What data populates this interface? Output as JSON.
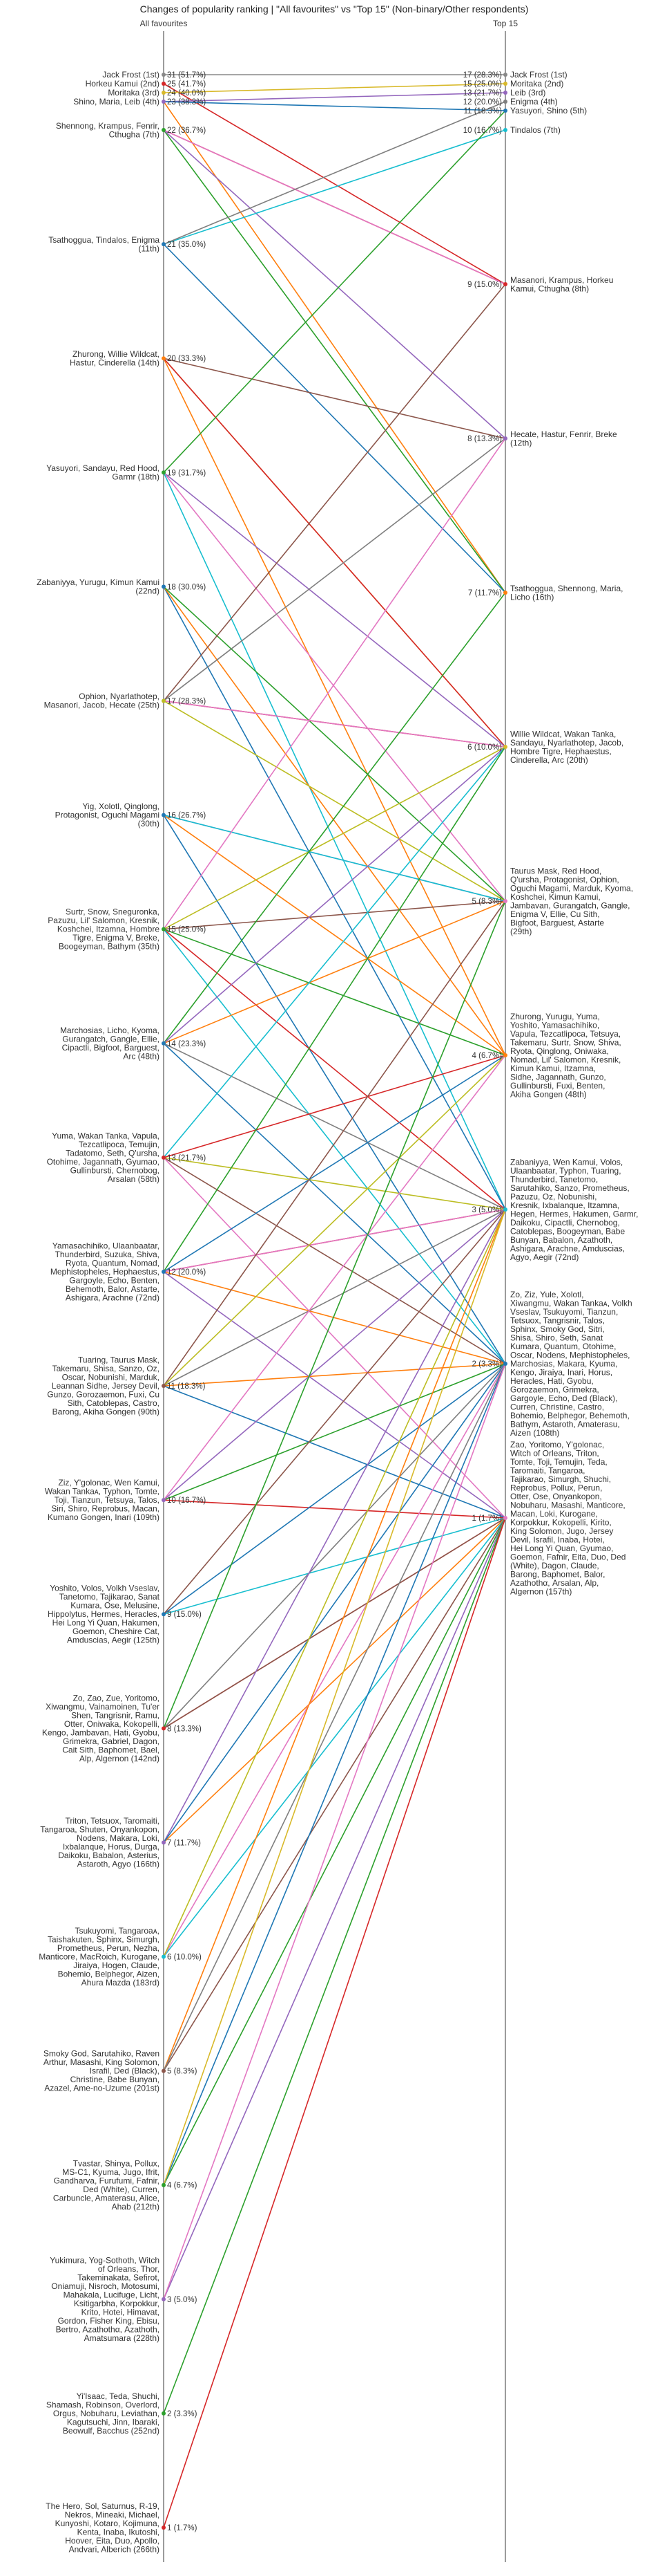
{
  "chart_data": {
    "type": "slope",
    "title": "Changes of popularity ranking | \"All favourites\" vs \"Top 15\" (Non-binary/Other respondents)",
    "left_header": "All favourites",
    "right_header": "Top 15",
    "left_max": 31,
    "right_max": 17,
    "left_groups": [
      {
        "count": 31,
        "pct": "51.7%",
        "names": [
          "Jack Frost (1st)"
        ]
      },
      {
        "count": 25,
        "pct": "41.7%",
        "names": [
          "Horkeu Kamui (2nd)"
        ]
      },
      {
        "count": 24,
        "pct": "40.0%",
        "names": [
          "Moritaka (3rd)"
        ]
      },
      {
        "count": 23,
        "pct": "38.3%",
        "names": [
          "Shino, Maria, Leib (4th)"
        ]
      },
      {
        "count": 22,
        "pct": "36.7%",
        "names": [
          "Shennong, Krampus, Fenrir,",
          "Cthugha (7th)"
        ]
      },
      {
        "count": 21,
        "pct": "35.0%",
        "names": [
          "Tsathoggua, Tindalos, Enigma",
          "(11th)"
        ]
      },
      {
        "count": 20,
        "pct": "33.3%",
        "names": [
          "Zhurong, Willie Wildcat,",
          "Hastur, Cinderella (14th)"
        ]
      },
      {
        "count": 19,
        "pct": "31.7%",
        "names": [
          "Yasuyori, Sandayu, Red Hood,",
          "Garmr (18th)"
        ]
      },
      {
        "count": 18,
        "pct": "30.0%",
        "names": [
          "Zabaniyya, Yurugu, Kimun Kamui",
          "(22nd)"
        ]
      },
      {
        "count": 17,
        "pct": "28.3%",
        "names": [
          "Ophion, Nyarlathotep,",
          "Masanori, Jacob, Hecate (25th)"
        ]
      },
      {
        "count": 16,
        "pct": "26.7%",
        "names": [
          "Yig, Xolotl, Qinglong,",
          "Protagonist, Oguchi Magami",
          "(30th)"
        ]
      },
      {
        "count": 15,
        "pct": "25.0%",
        "names": [
          "Surtr, Snow, Sneguronka,",
          "Pazuzu, Lil' Salomon, Kresnik,",
          "Koshchei, Itzamna, Hombre",
          "Tigre, Enigma V, Breke,",
          "Boogeyman, Bathym (35th)"
        ]
      },
      {
        "count": 14,
        "pct": "23.3%",
        "names": [
          "Marchosias, Licho, Kyoma,",
          "Gurangatch, Gangle, Ellie,",
          "Cipactli, Bigfoot, Barguest,",
          "Arc (48th)"
        ]
      },
      {
        "count": 13,
        "pct": "21.7%",
        "names": [
          "Yuma, Wakan Tanka, Vapula,",
          "Tezcatlipoca, Temujin,",
          "Tadatomo, Seth, Q'ursha,",
          "Otohime, Jagannath, Gyumao,",
          "Gullinbursti, Chernobog,",
          "Arsalan (58th)"
        ]
      },
      {
        "count": 12,
        "pct": "20.0%",
        "names": [
          "Yamasachihiko, Ulaanbaatar,",
          "Thunderbird, Suzuka, Shiva,",
          "Ryota, Quantum, Nomad,",
          "Mephistopheles, Hephaestus,",
          "Gargoyle, Echo, Benten,",
          "Behemoth, Balor, Astarte,",
          "Ashigara, Arachne (72nd)"
        ]
      },
      {
        "count": 11,
        "pct": "18.3%",
        "names": [
          "Tuaring, Taurus Mask,",
          "Takemaru, Shisa, Sanzo, Oz,",
          "Oscar, Nobunishi, Marduk,",
          "Leannan Sidhe, Jersey Devil,",
          "Gunzo, Gorozaemon, Fuxi, Cu",
          "Sith, Catoblepas, Castro,",
          "Barong, Akiha Gongen (90th)"
        ]
      },
      {
        "count": 10,
        "pct": "16.7%",
        "names": [
          "Ziz, Y'golonac, Wen Kamui,",
          "Wakan Tankaᴀ, Typhon, Tomte,",
          "Toji, Tianzun, Tetsuya, Talos,",
          "Siri, Shiro, Reprobus, Macan,",
          "Kumano Gongen, Inari (109th)"
        ]
      },
      {
        "count": 9,
        "pct": "15.0%",
        "names": [
          "Yoshito, Volos, Volkh Vseslav,",
          "Tanetomo, Tajikarao, Sanat",
          "Kumara, Ose, Melusine,",
          "Hippolytus, Hermes, Heracles,",
          "Hei Long Yi Quan, Hakumen,",
          "Goemon, Cheshire Cat,",
          "Amduscias, Aegir (125th)"
        ]
      },
      {
        "count": 8,
        "pct": "13.3%",
        "names": [
          "Zo, Zao, Zue, Yoritomo,",
          "Xiwangmu, Vainamoinen, Tu'er",
          "Shen, Tangrisnir, Ramu,",
          "Otter, Oniwaka, Kokopelli,",
          "Kengo, Jambavan, Hati, Gyobu,",
          "Grimekra, Gabriel, Dagon,",
          "Cait Sith, Baphomet, Bael,",
          "Alp, Algernon (142nd)"
        ]
      },
      {
        "count": 7,
        "pct": "11.7%",
        "names": [
          "Triton, Tetsuox, Taromaiti,",
          "Tangaroa, Shuten, Onyankopon,",
          "Nodens, Makara, Loki,",
          "Ixbalanque, Horus, Durga,",
          "Daikoku, Babalon, Asterius,",
          "Astaroth, Agyo (166th)"
        ]
      },
      {
        "count": 6,
        "pct": "10.0%",
        "names": [
          "Tsukuyomi, Tangaroaᴀ,",
          "Taishakuten, Sphinx, Simurgh,",
          "Prometheus, Perun, Nezha,",
          "Manticore, MacRoich, Kurogane,",
          "Jiraiya, Hogen, Claude,",
          "Bohemio, Belphegor, Aizen,",
          "Ahura Mazda (183rd)"
        ]
      },
      {
        "count": 5,
        "pct": "8.3%",
        "names": [
          "Smoky God, Sarutahiko, Raven",
          "Arthur, Masashi, King Solomon,",
          "Israfil, Ded (Black),",
          "Christine, Babe Bunyan,",
          "Azazel, Ame-no-Uzume (201st)"
        ]
      },
      {
        "count": 4,
        "pct": "6.7%",
        "names": [
          "Tvastar, Shinya, Pollux,",
          "MS-C1, Kyuma, Jugo, Ifrit,",
          "Gandharva, Furufumi, Fafnir,",
          "Ded (White), Curren,",
          "Carbuncle, Amaterasu, Alice,",
          "Ahab (212th)"
        ]
      },
      {
        "count": 3,
        "pct": "5.0%",
        "names": [
          "Yukimura, Yog-Sothoth, Witch",
          "of Orleans, Thor,",
          "Takeminakata, Sefirot,",
          "Oniamuji, Nisroch, Motosumi,",
          "Mahakala, Lucifuge, Licht,",
          "Ksitigarbha, Korpokkur,",
          "Krito, Hotei, Himavat,",
          "Gordon, Fisher King, Ebisu,",
          "Bertro, Azathothα, Azathoth,",
          "Amatsumara (228th)"
        ]
      },
      {
        "count": 2,
        "pct": "3.3%",
        "names": [
          "Yi'Isaac, Teda, Shuchi,",
          "Shamash, Robinson, Overlord,",
          "Orgus, Nobuharu, Leviathan,",
          "Kagutsuchi, Jinn, Ibaraki,",
          "Beowulf, Bacchus (252nd)"
        ]
      },
      {
        "count": 1,
        "pct": "1.7%",
        "names": [
          "The Hero, Sol, Saturnus, R-19,",
          "Nekros, Mineaki, Michael,",
          "Kunyoshi, Kotaro, Kojimuna,",
          "Kenta, Inaba, Ikutoshi,",
          "Hoover, Eita, Duo, Apollo,",
          "Andvari, Alberich (266th)"
        ]
      }
    ],
    "right_groups": [
      {
        "count": 17,
        "pct": "28.3%",
        "names": [
          "Jack Frost (1st)"
        ]
      },
      {
        "count": 15,
        "pct": "25.0%",
        "names": [
          "Moritaka (2nd)"
        ]
      },
      {
        "count": 13,
        "pct": "21.7%",
        "names": [
          "Leib (3rd)"
        ]
      },
      {
        "count": 12,
        "pct": "20.0%",
        "names": [
          "Enigma (4th)"
        ]
      },
      {
        "count": 11,
        "pct": "18.3%",
        "names": [
          "Yasuyori, Shino (5th)"
        ]
      },
      {
        "count": 10,
        "pct": "16.7%",
        "names": [
          "Tindalos (7th)"
        ]
      },
      {
        "count": 9,
        "pct": "15.0%",
        "names": [
          "Masanori, Krampus, Horkeu",
          "Kamui, Cthugha (8th)"
        ]
      },
      {
        "count": 8,
        "pct": "13.3%",
        "names": [
          "Hecate, Hastur, Fenrir, Breke",
          "(12th)"
        ]
      },
      {
        "count": 7,
        "pct": "11.7%",
        "names": [
          "Tsathoggua, Shennong, Maria,",
          "Licho (16th)"
        ]
      },
      {
        "count": 6,
        "pct": "10.0%",
        "names": [
          "Willie Wildcat, Wakan Tanka,",
          "Sandayu, Nyarlathotep, Jacob,",
          "Hombre Tigre, Hephaestus,",
          "Cinderella, Arc (20th)"
        ]
      },
      {
        "count": 5,
        "pct": "8.3%",
        "names": [
          "Taurus Mask, Red Hood,",
          "Q'ursha, Protagonist, Ophion,",
          "Oguchi Magami, Marduk, Kyoma,",
          "Koshchei, Kimun Kamui,",
          "Jambavan, Gurangatch, Gangle,",
          "Enigma V, Ellie, Cu Sith,",
          "Bigfoot, Barguest, Astarte",
          "(29th)"
        ]
      },
      {
        "count": 4,
        "pct": "6.7%",
        "names": [
          "Zhurong, Yurugu, Yuma,",
          "Yoshito, Yamasachihiko,",
          "Vapula, Tezcatlipoca, Tetsuya,",
          "Takemaru, Surtr, Snow, Shiva,",
          "Ryota, Qinglong, Oniwaka,",
          "Nomad, Lil' Salomon, Kresnik,",
          "Kimun Kamui, Itzamna,",
          "Sidhe, Jagannath, Gunzo,",
          "Gullinbursti, Fuxi, Benten,",
          "Akiha Gongen (48th)"
        ]
      },
      {
        "count": 3,
        "pct": "5.0%",
        "names": [
          "Zabaniyya, Wen Kamui, Volos,",
          "Ulaanbaatar, Typhon, Tuaring,",
          "Thunderbird, Tanetomo,",
          "Sarutahiko, Sanzo, Prometheus,",
          "Pazuzu, Oz, Nobunishi,",
          "Kresnik, Ixbalanque, Itzamna,",
          "Hegen, Hermes, Hakumen, Garmr,",
          "Daikoku, Cipactli, Chernobog,",
          "Catoblepas, Boogeyman, Babe",
          "Bunyan, Babalon, Azathoth,",
          "Ashigara, Arachne, Amduscias,",
          "Agyo, Aegir (72nd)"
        ]
      },
      {
        "count": 2,
        "pct": "3.3%",
        "names": [
          "Zo, Ziz, Yule, Xolotl,",
          "Xiwangmu, Wakan Tankaᴀ, Volkh",
          "Vseslav, Tsukuyomi, Tianzun,",
          "Tetsuox, Tangrisnir, Talos,",
          "Sphinx, Smoky God, Sitri,",
          "Shisa, Shiro, Seth, Sanat",
          "Kumara, Quantum, Otohime,",
          "Oscar, Nodens, Mephistopheles,",
          "Marchosias, Makara, Kyuma,",
          "Kengo, Jiraiya, Inari, Horus,",
          "Heracles, Hati, Gyobu,",
          "Gorozaemon, Grimekra,",
          "Gargoyle, Echo, Ded (Black),",
          "Curren, Christine, Castro,",
          "Bohemio, Belphegor, Behemoth,",
          "Bathym, Astaroth, Amaterasu,",
          "Aizen (108th)"
        ]
      },
      {
        "count": 1,
        "pct": "1.7%",
        "names": [
          "Zao, Yoritomo, Y'golonac,",
          "Witch of Orleans, Triton,",
          "Tomte, Toji, Temujin, Teda,",
          "Taromaiti, Tangaroa,",
          "Tajikarao, Simurgh, Shuchi,",
          "Reprobus, Pollux, Perun,",
          "Otter, Ose, Onyankopon,",
          "Nobuharu, Masashi, Manticore,",
          "Macan, Loki, Kurogane,",
          "Korpokkur, Kokopelli, Kirito,",
          "King Solomon, Jugo, Jersey",
          "Devil, Israfil, Inaba, Hotei,",
          "Hei Long Yi Quan, Gyumao,",
          "Goemon, Fafnir, Eita, Duo, Ded",
          "(White), Dagon, Claude,",
          "Barong, Baphomet, Balor,",
          "Azathothα, Arsalan, Alp,",
          "Algernon (157th)"
        ]
      }
    ],
    "links": [
      {
        "from": 31,
        "to": 17,
        "color": "#888888"
      },
      {
        "from": 25,
        "to": 9,
        "color": "#d62728"
      },
      {
        "from": 24,
        "to": 15,
        "color": "#d8b92a"
      },
      {
        "from": 23,
        "to": 13,
        "color": "#9467bd"
      },
      {
        "from": 23,
        "to": 11,
        "color": "#1f77b4"
      },
      {
        "from": 23,
        "to": 7,
        "color": "#ff7f0e"
      },
      {
        "from": 22,
        "to": 7,
        "color": "#2ca02c"
      },
      {
        "from": 22,
        "to": 9,
        "color": "#d62728"
      },
      {
        "from": 22,
        "to": 8,
        "color": "#9467bd"
      },
      {
        "from": 22,
        "to": 9,
        "color": "#e377c2"
      },
      {
        "from": 21,
        "to": 7,
        "color": "#1f77b4"
      },
      {
        "from": 21,
        "to": 10,
        "color": "#17becf"
      },
      {
        "from": 21,
        "to": 12,
        "color": "#7f7f7f"
      },
      {
        "from": 20,
        "to": 4,
        "color": "#ff7f0e"
      },
      {
        "from": 20,
        "to": 6,
        "color": "#d8b92a"
      },
      {
        "from": 20,
        "to": 8,
        "color": "#8c564b"
      },
      {
        "from": 20,
        "to": 6,
        "color": "#d62728"
      },
      {
        "from": 19,
        "to": 11,
        "color": "#2ca02c"
      },
      {
        "from": 19,
        "to": 6,
        "color": "#9467bd"
      },
      {
        "from": 19,
        "to": 5,
        "color": "#e377c2"
      },
      {
        "from": 19,
        "to": 3,
        "color": "#17becf"
      },
      {
        "from": 18,
        "to": 3,
        "color": "#1f77b4"
      },
      {
        "from": 18,
        "to": 4,
        "color": "#ff7f0e"
      },
      {
        "from": 18,
        "to": 5,
        "color": "#2ca02c"
      },
      {
        "from": 17,
        "to": 5,
        "color": "#bcbd22"
      },
      {
        "from": 17,
        "to": 6,
        "color": "#d62728"
      },
      {
        "from": 17,
        "to": 9,
        "color": "#8c564b"
      },
      {
        "from": 17,
        "to": 6,
        "color": "#e377c2"
      },
      {
        "from": 17,
        "to": 8,
        "color": "#7f7f7f"
      },
      {
        "from": 16,
        "to": 2,
        "color": "#1f77b4"
      },
      {
        "from": 16,
        "to": 4,
        "color": "#ff7f0e"
      },
      {
        "from": 16,
        "to": 5,
        "color": "#9467bd"
      },
      {
        "from": 16,
        "to": 5,
        "color": "#17becf"
      },
      {
        "from": 15,
        "to": 4,
        "color": "#2ca02c"
      },
      {
        "from": 15,
        "to": 3,
        "color": "#d62728"
      },
      {
        "from": 15,
        "to": 5,
        "color": "#8c564b"
      },
      {
        "from": 15,
        "to": 8,
        "color": "#e377c2"
      },
      {
        "from": 15,
        "to": 6,
        "color": "#bcbd22"
      },
      {
        "from": 15,
        "to": 2,
        "color": "#17becf"
      },
      {
        "from": 14,
        "to": 2,
        "color": "#1f77b4"
      },
      {
        "from": 14,
        "to": 5,
        "color": "#ff7f0e"
      },
      {
        "from": 14,
        "to": 7,
        "color": "#2ca02c"
      },
      {
        "from": 14,
        "to": 6,
        "color": "#9467bd"
      },
      {
        "from": 14,
        "to": 3,
        "color": "#7f7f7f"
      },
      {
        "from": 13,
        "to": 4,
        "color": "#d62728"
      },
      {
        "from": 13,
        "to": 2,
        "color": "#8c564b"
      },
      {
        "from": 13,
        "to": 1,
        "color": "#e377c2"
      },
      {
        "from": 13,
        "to": 3,
        "color": "#bcbd22"
      },
      {
        "from": 13,
        "to": 6,
        "color": "#17becf"
      },
      {
        "from": 12,
        "to": 4,
        "color": "#1f77b4"
      },
      {
        "from": 12,
        "to": 3,
        "color": "#d62728"
      },
      {
        "from": 12,
        "to": 2,
        "color": "#ff7f0e"
      },
      {
        "from": 12,
        "to": 6,
        "color": "#2ca02c"
      },
      {
        "from": 12,
        "to": 1,
        "color": "#9467bd"
      },
      {
        "from": 12,
        "to": 3,
        "color": "#e377c2"
      },
      {
        "from": 11,
        "to": 5,
        "color": "#8c564b"
      },
      {
        "from": 11,
        "to": 3,
        "color": "#7f7f7f"
      },
      {
        "from": 11,
        "to": 1,
        "color": "#1f77b4"
      },
      {
        "from": 11,
        "to": 4,
        "color": "#bcbd22"
      },
      {
        "from": 11,
        "to": 2,
        "color": "#ff7f0e"
      },
      {
        "from": 10,
        "to": 3,
        "color": "#9467bd"
      },
      {
        "from": 10,
        "to": 2,
        "color": "#2ca02c"
      },
      {
        "from": 10,
        "to": 1,
        "color": "#d62728"
      },
      {
        "from": 10,
        "to": 4,
        "color": "#e377c2"
      },
      {
        "from": 9,
        "to": 2,
        "color": "#1f77b4"
      },
      {
        "from": 9,
        "to": 3,
        "color": "#8c564b"
      },
      {
        "from": 9,
        "to": 1,
        "color": "#17becf"
      },
      {
        "from": 8,
        "to": 1,
        "color": "#d62728"
      },
      {
        "from": 8,
        "to": 2,
        "color": "#7f7f7f"
      },
      {
        "from": 8,
        "to": 5,
        "color": "#2ca02c"
      },
      {
        "from": 8,
        "to": 1,
        "color": "#8c564b"
      },
      {
        "from": 7,
        "to": 3,
        "color": "#9467bd"
      },
      {
        "from": 7,
        "to": 1,
        "color": "#ff7f0e"
      },
      {
        "from": 7,
        "to": 2,
        "color": "#1f77b4"
      },
      {
        "from": 6,
        "to": 1,
        "color": "#17becf"
      },
      {
        "from": 6,
        "to": 2,
        "color": "#e377c2"
      },
      {
        "from": 6,
        "to": 3,
        "color": "#bcbd22"
      },
      {
        "from": 5,
        "to": 1,
        "color": "#8c564b"
      },
      {
        "from": 5,
        "to": 3,
        "color": "#ff7f0e"
      },
      {
        "from": 5,
        "to": 2,
        "color": "#7f7f7f"
      },
      {
        "from": 4,
        "to": 1,
        "color": "#2ca02c"
      },
      {
        "from": 4,
        "to": 2,
        "color": "#1f77b4"
      },
      {
        "from": 4,
        "to": 3,
        "color": "#d8b92a"
      },
      {
        "from": 3,
        "to": 1,
        "color": "#9467bd"
      },
      {
        "from": 3,
        "to": 2,
        "color": "#e377c2"
      },
      {
        "from": 2,
        "to": 1,
        "color": "#2ca02c"
      },
      {
        "from": 1,
        "to": 1,
        "color": "#d62728"
      }
    ]
  }
}
